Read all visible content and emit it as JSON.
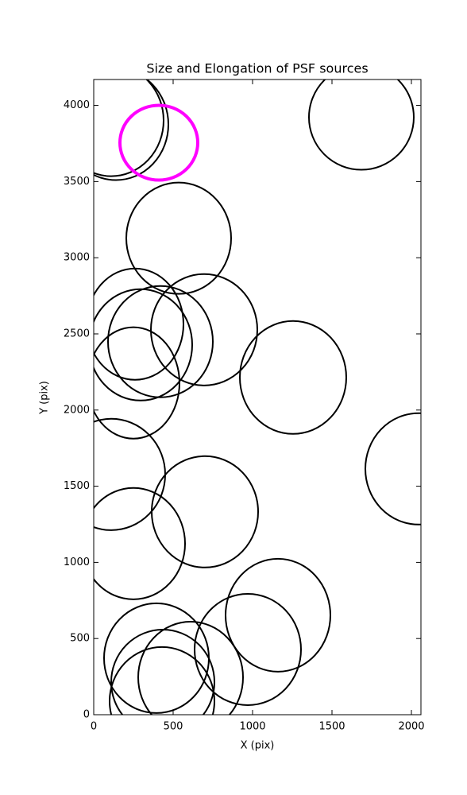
{
  "chart_data": {
    "type": "ellipse",
    "title": "Size and Elongation of PSF sources",
    "x_label": "X (pix)",
    "y_label": "Y (pix)",
    "xlim": [
      0,
      2060
    ],
    "ylim": [
      0,
      4170
    ],
    "xticks": [
      0,
      500,
      1000,
      1500,
      2000
    ],
    "yticks": [
      0,
      500,
      1000,
      1500,
      2000,
      2500,
      3000,
      3500,
      4000
    ],
    "series": [
      {
        "color": "#000000",
        "x": [
          110,
          140,
          1685,
          535,
          260,
          295,
          420,
          695,
          250,
          1255,
          2045,
          110,
          700,
          250,
          1160,
          970,
          395,
          610,
          435,
          430
        ],
        "y": [
          3901,
          3875,
          3922,
          3128,
          2564,
          2428,
          2449,
          2527,
          2178,
          2214,
          1614,
          1577,
          1332,
          1123,
          653,
          428,
          371,
          245,
          214,
          89
        ],
        "width": [
          660,
          660,
          660,
          660,
          610,
          650,
          660,
          670,
          580,
          670,
          670,
          680,
          670,
          650,
          660,
          670,
          660,
          660,
          650,
          660
        ],
        "height": [
          731,
          731,
          689,
          731,
          731,
          731,
          731,
          731,
          731,
          741,
          731,
          731,
          731,
          731,
          741,
          731,
          720,
          731,
          689,
          710
        ]
      },
      {
        "color": "#ff00ff",
        "x": [
          410
        ],
        "y": [
          3755
        ],
        "width": [
          490
        ],
        "height": [
          491
        ]
      }
    ]
  }
}
